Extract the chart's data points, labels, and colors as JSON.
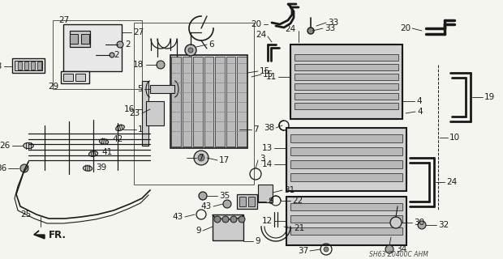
{
  "background_color": "#f5f5f0",
  "line_color": "#1a1a1a",
  "watermark": "SH63 Z0400C AHM",
  "fig_width": 6.2,
  "fig_height": 3.2,
  "dpi": 100
}
